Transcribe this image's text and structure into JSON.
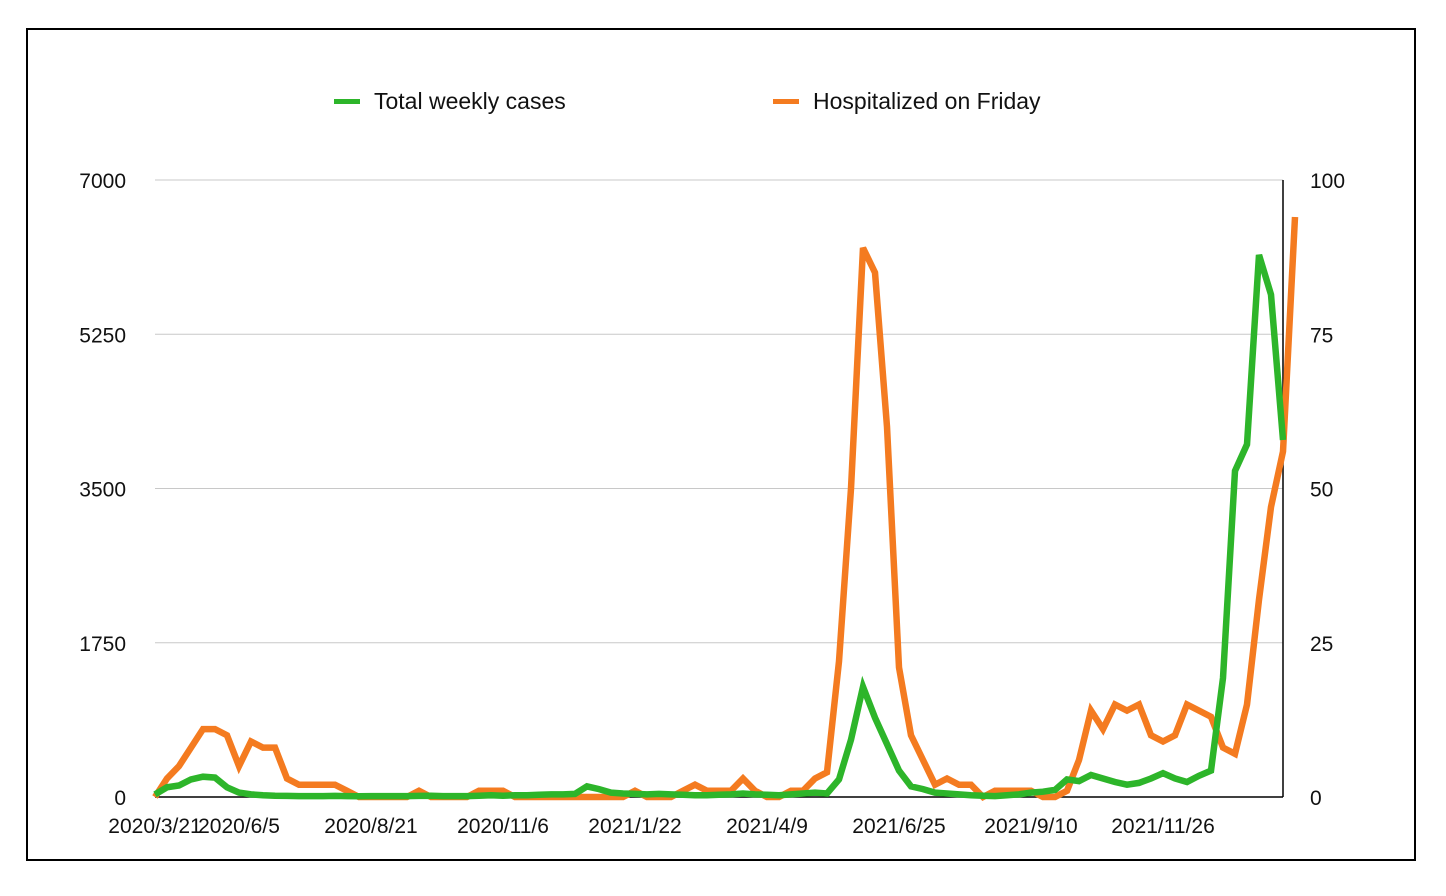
{
  "chart_data": {
    "type": "line",
    "title": "",
    "xlabel": "",
    "ylabel": "",
    "y_left": {
      "min": 0,
      "max": 7000,
      "ticks": [
        "0",
        "1750",
        "3500",
        "5250",
        "7000"
      ]
    },
    "y_right": {
      "min": 0,
      "max": 100,
      "ticks": [
        "0",
        "25",
        "50",
        "75",
        "100"
      ]
    },
    "x_tick_labels": [
      "2020/3/21",
      "2020/6/5",
      "2020/8/21",
      "2020/11/6",
      "2021/1/22",
      "2021/4/9",
      "2021/6/25",
      "2021/9/10",
      "2021/11/26"
    ],
    "x_tick_week_index": [
      0,
      7,
      18,
      29,
      40,
      51,
      62,
      73,
      84
    ],
    "legend": {
      "position": "top"
    },
    "series": [
      {
        "name": "Total weekly cases",
        "axis": "left",
        "color": "#2db52a",
        "values": [
          30,
          110,
          130,
          200,
          230,
          220,
          110,
          50,
          30,
          20,
          15,
          12,
          10,
          10,
          10,
          12,
          10,
          8,
          10,
          10,
          10,
          10,
          12,
          15,
          10,
          10,
          10,
          15,
          20,
          15,
          20,
          20,
          25,
          30,
          30,
          35,
          120,
          90,
          50,
          40,
          35,
          30,
          35,
          30,
          25,
          20,
          20,
          25,
          30,
          40,
          30,
          25,
          20,
          30,
          40,
          50,
          40,
          200,
          650,
          1250,
          900,
          600,
          300,
          120,
          90,
          50,
          40,
          30,
          20,
          15,
          10,
          20,
          30,
          50,
          60,
          80,
          200,
          180,
          250,
          210,
          170,
          140,
          160,
          210,
          270,
          210,
          170,
          240,
          300,
          1350,
          3700,
          4000,
          6150,
          5700,
          4050
        ]
      },
      {
        "name": "Hospitalized on Friday",
        "axis": "right",
        "color": "#f47b20",
        "values": [
          0,
          3,
          5,
          8,
          11,
          11,
          10,
          5,
          9,
          8,
          8,
          3,
          2,
          2,
          2,
          2,
          1,
          0,
          0,
          0,
          0,
          0,
          1,
          0,
          0,
          0,
          0,
          1,
          1,
          1,
          0,
          0,
          0,
          0,
          0,
          0,
          0,
          0,
          0,
          0,
          1,
          0,
          0,
          0,
          1,
          2,
          1,
          1,
          1,
          3,
          1,
          0,
          0,
          1,
          1,
          3,
          4,
          22,
          50,
          89,
          85,
          60,
          21,
          10,
          6,
          2,
          3,
          2,
          2,
          0,
          1,
          1,
          1,
          1,
          0,
          0,
          1,
          6,
          14,
          11,
          15,
          14,
          15,
          10,
          9,
          10,
          15,
          14,
          13,
          8,
          7,
          15,
          32,
          47,
          56,
          94
        ]
      }
    ]
  }
}
